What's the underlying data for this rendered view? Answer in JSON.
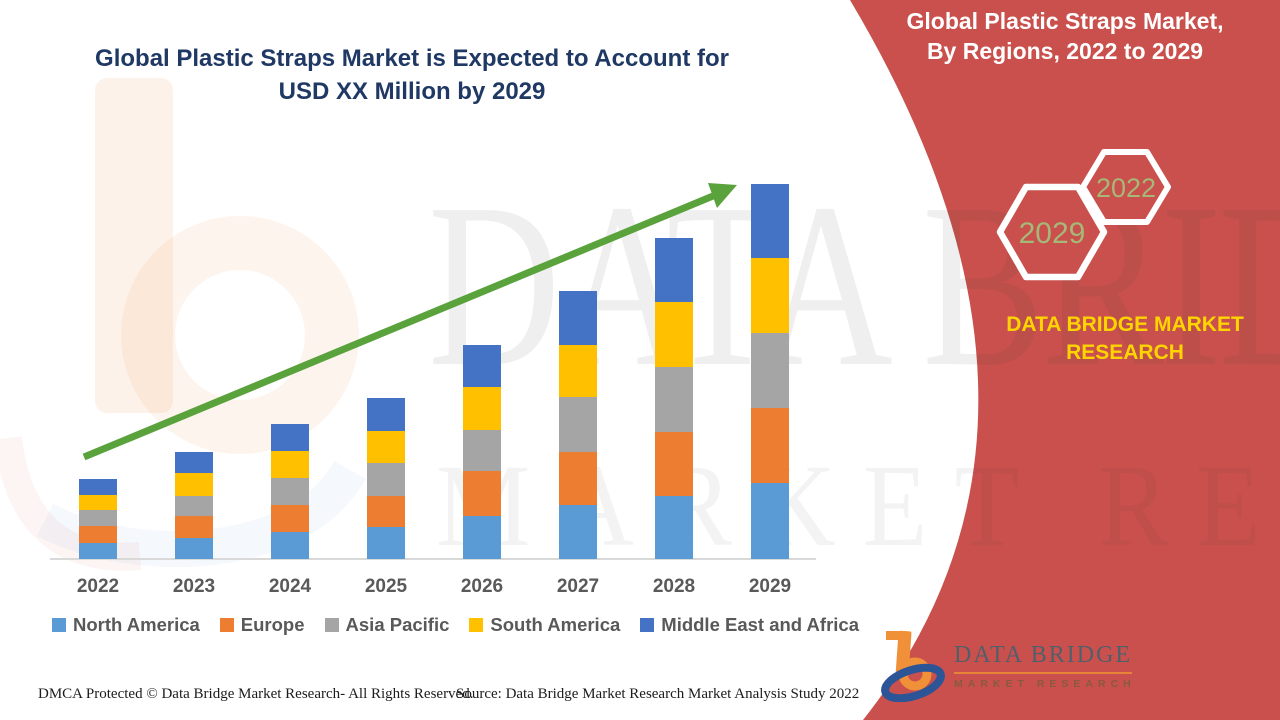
{
  "page": {
    "background": "#ffffff",
    "accent_red": "#c9504c",
    "title_navy": "#1f3864",
    "brand_yellow": "#ffd400",
    "hex_label_green": "#a6b878",
    "axis_label_gray": "#595959"
  },
  "title": {
    "line1": "Global Plastic Straps Market is Expected to Account for",
    "line2": "USD XX Million by 2029"
  },
  "right_panel": {
    "heading_line1": "Global Plastic Straps Market,",
    "heading_line2": "By Regions, 2022 to 2029",
    "hexagons": [
      {
        "label": "2029"
      },
      {
        "label": "2022"
      }
    ],
    "brand_text": "DATA BRIDGE MARKET RESEARCH"
  },
  "chart_data": {
    "type": "bar",
    "stacked": true,
    "title": "Global Plastic Straps Market is Expected to Account for USD XX Million by 2029",
    "xlabel": "",
    "ylabel": "",
    "y_axis_visible": false,
    "value_units": "relative units (y-axis not shown; values labeled USD XX Million)",
    "legend_position": "bottom",
    "grid": false,
    "trend_arrow": true,
    "trend_arrow_color": "#5aa23c",
    "categories": [
      "2022",
      "2023",
      "2024",
      "2025",
      "2026",
      "2027",
      "2028",
      "2029"
    ],
    "series": [
      {
        "name": "North America",
        "color": "#5b9bd5",
        "values": [
          16,
          21,
          27,
          32,
          43,
          54,
          63,
          76
        ]
      },
      {
        "name": "Europe",
        "color": "#ed7d31",
        "values": [
          17,
          22,
          27,
          31,
          45,
          53,
          64,
          75
        ]
      },
      {
        "name": "Asia Pacific",
        "color": "#a5a5a5",
        "values": [
          16,
          20,
          27,
          33,
          41,
          55,
          65,
          75
        ]
      },
      {
        "name": "South America",
        "color": "#ffc000",
        "values": [
          15,
          23,
          27,
          32,
          43,
          52,
          65,
          75
        ]
      },
      {
        "name": "Middle East and Africa",
        "color": "#4472c4",
        "values": [
          16,
          21,
          27,
          33,
          42,
          54,
          64,
          74
        ]
      }
    ],
    "totals": [
      80,
      107,
      135,
      161,
      214,
      268,
      321,
      375
    ]
  },
  "watermark": {
    "line1": "DATA BRIDGE",
    "line2": "MARKET RESEARCH"
  },
  "footer": {
    "left": "DMCA Protected © Data Bridge Market Research- All Rights Reserved.",
    "right": "Source: Data Bridge Market Research Market Analysis Study 2022"
  },
  "logo": {
    "name_line": "DATA BRIDGE",
    "sub_line": "MARKET RESEARCH"
  }
}
